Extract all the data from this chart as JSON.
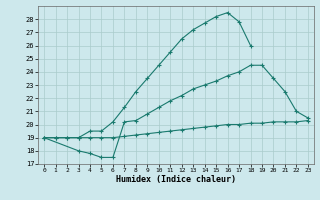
{
  "xlabel": "Humidex (Indice chaleur)",
  "bg_color": "#cde8ec",
  "grid_color": "#aacccc",
  "line_color": "#1a7a6e",
  "xlim": [
    -0.5,
    23.5
  ],
  "ylim": [
    17,
    29
  ],
  "xticks": [
    0,
    1,
    2,
    3,
    4,
    5,
    6,
    7,
    8,
    9,
    10,
    11,
    12,
    13,
    14,
    15,
    16,
    17,
    18,
    19,
    20,
    21,
    22,
    23
  ],
  "yticks": [
    17,
    18,
    19,
    20,
    21,
    22,
    23,
    24,
    25,
    26,
    27,
    28
  ],
  "line1_x": [
    0,
    1,
    2,
    3,
    4,
    5,
    6,
    7,
    8,
    9,
    10,
    11,
    12,
    13,
    14,
    15,
    16,
    17,
    18
  ],
  "line1_y": [
    19,
    19,
    19,
    19,
    19.5,
    19.5,
    20.2,
    21.3,
    22.5,
    23.5,
    24.5,
    25.5,
    26.5,
    27.2,
    27.7,
    28.2,
    28.5,
    27.8,
    26.0
  ],
  "line2_x": [
    0,
    3,
    4,
    5,
    6,
    7,
    8,
    9,
    10,
    11,
    12,
    13,
    14,
    15,
    16,
    17,
    18,
    19,
    20,
    21,
    22,
    23
  ],
  "line2_y": [
    19,
    18,
    17.8,
    17.5,
    17.5,
    20.2,
    20.3,
    20.8,
    21.3,
    21.8,
    22.2,
    22.7,
    23.0,
    23.3,
    23.7,
    24.0,
    24.5,
    24.5,
    23.5,
    22.5,
    21.0,
    20.5
  ],
  "line3_x": [
    0,
    1,
    2,
    3,
    4,
    5,
    6,
    7,
    8,
    9,
    10,
    11,
    12,
    13,
    14,
    15,
    16,
    17,
    18,
    19,
    20,
    21,
    22,
    23
  ],
  "line3_y": [
    19,
    19,
    19,
    19,
    19,
    19,
    19,
    19.1,
    19.2,
    19.3,
    19.4,
    19.5,
    19.6,
    19.7,
    19.8,
    19.9,
    20.0,
    20.0,
    20.1,
    20.1,
    20.2,
    20.2,
    20.2,
    20.3
  ]
}
